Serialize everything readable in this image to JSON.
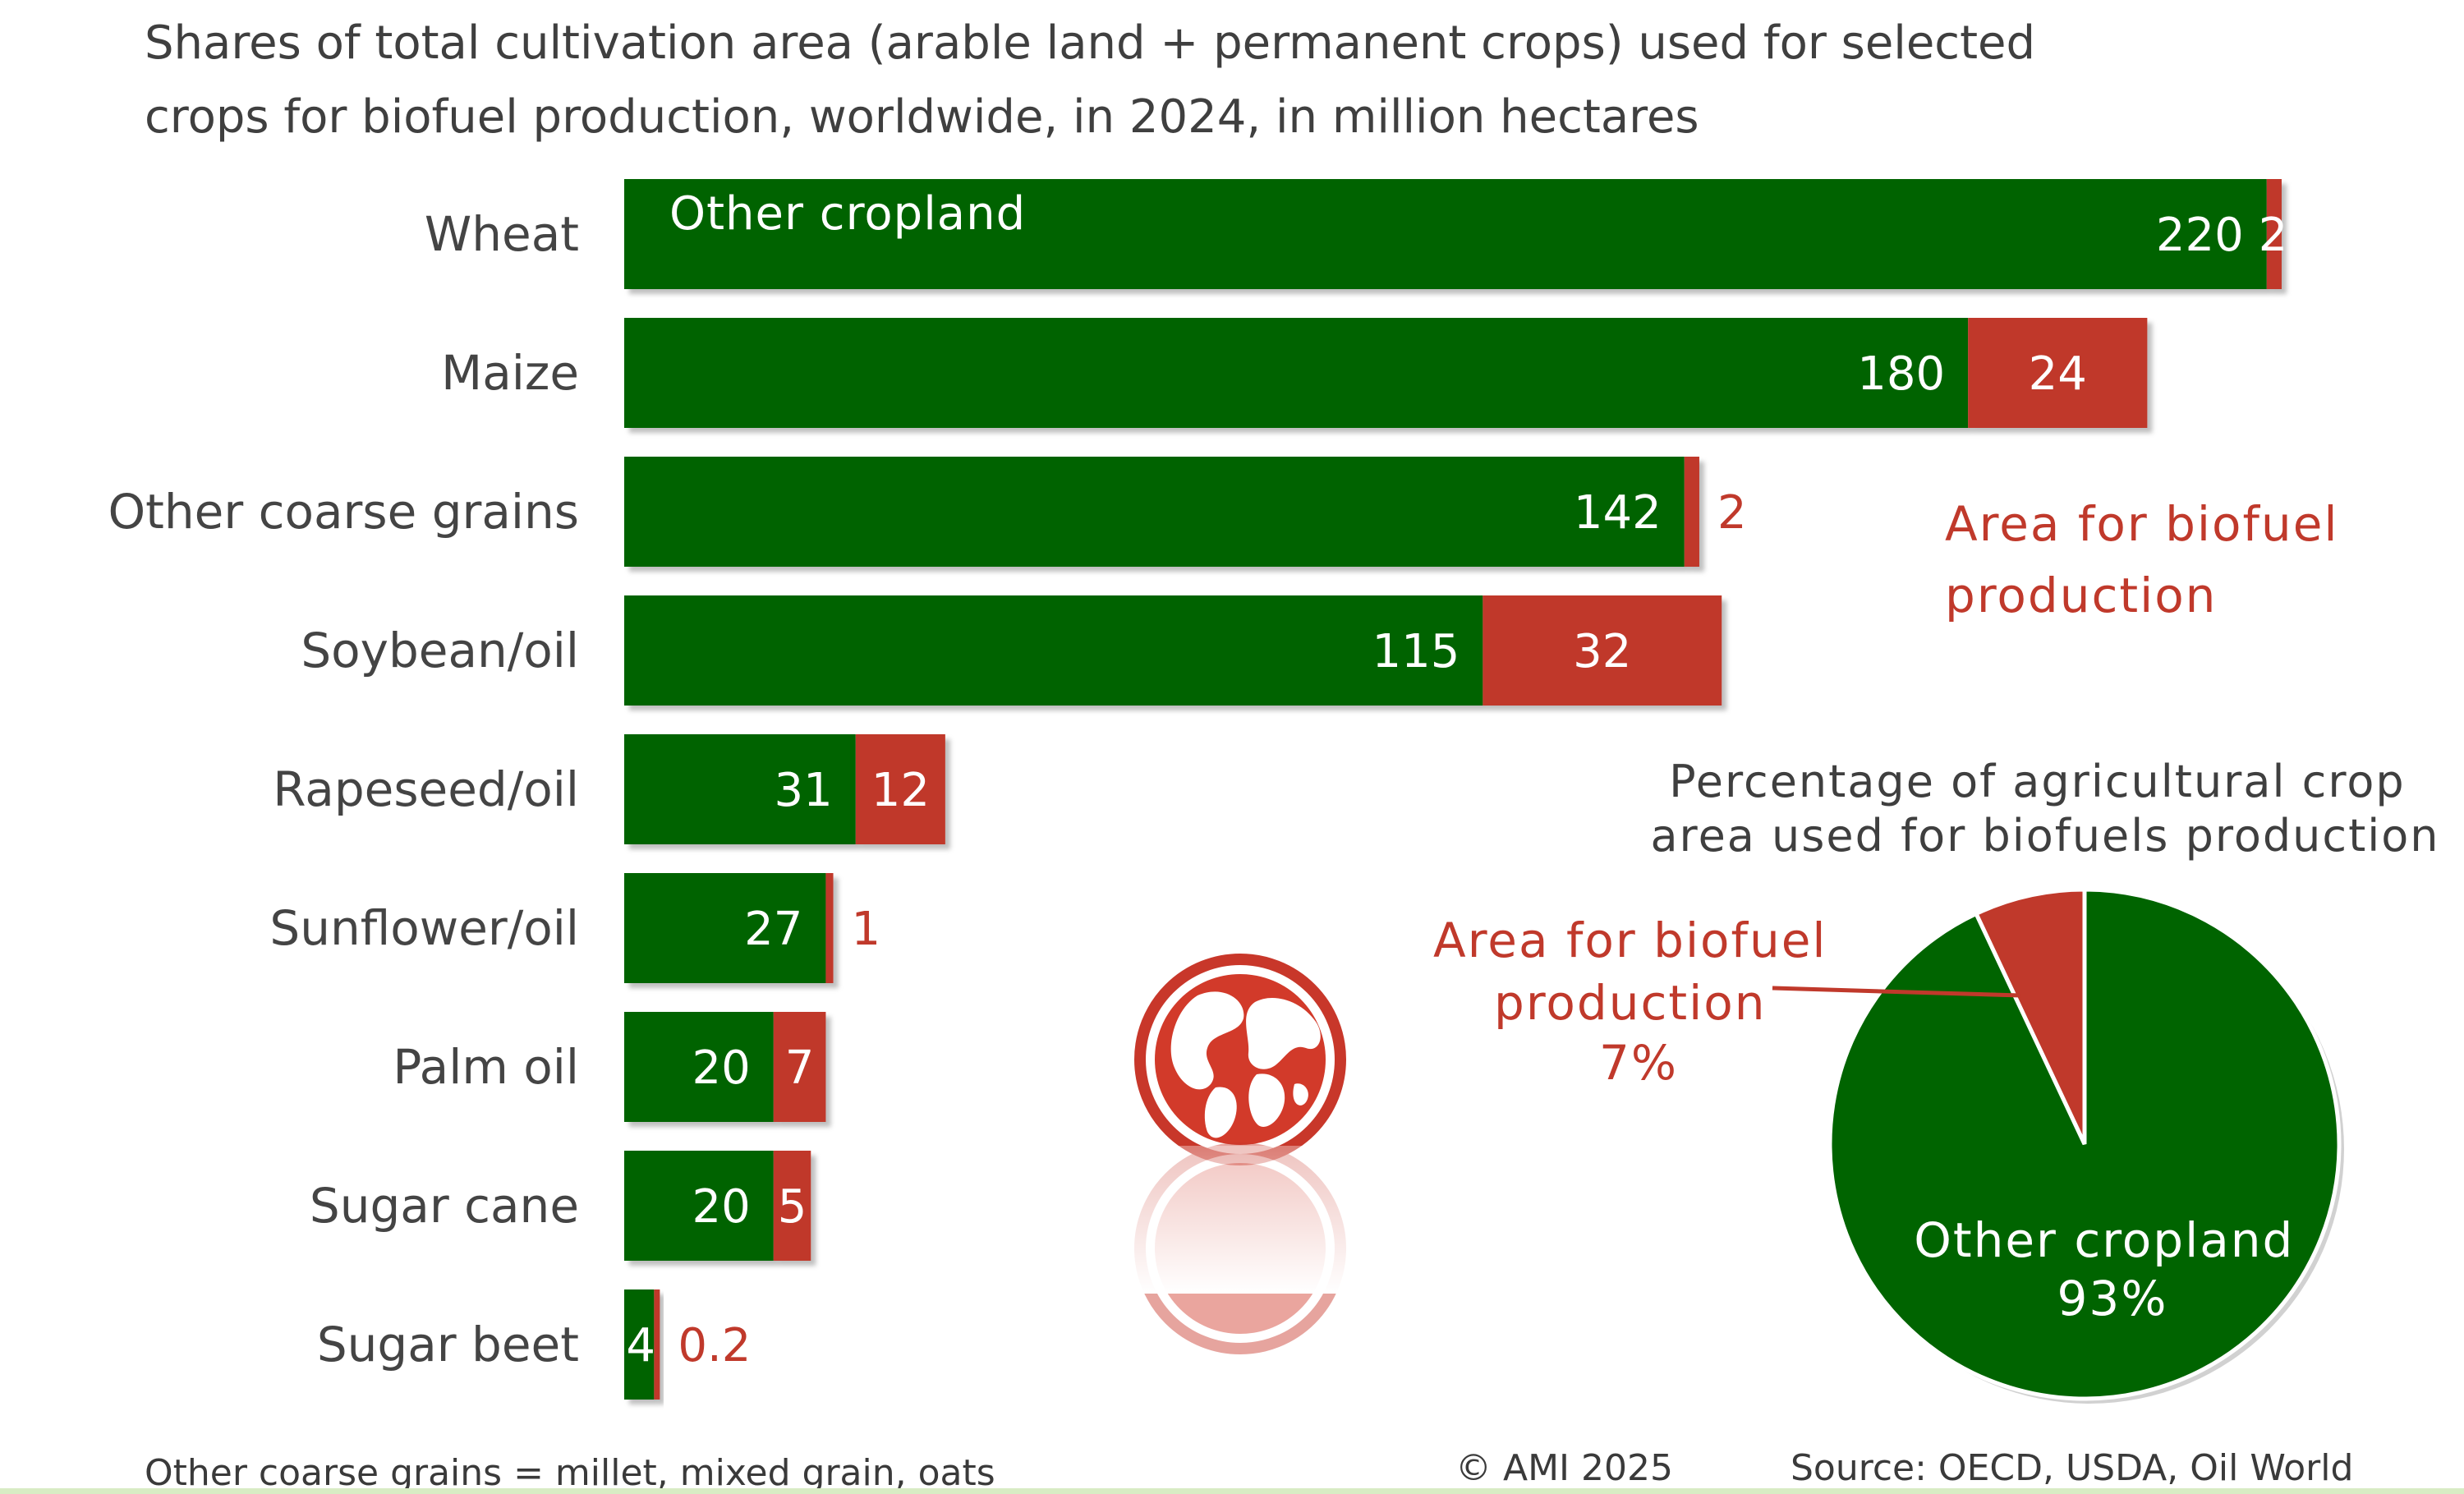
{
  "title": "Shares of total cultivation area (arable land + permanent crops) used for selected crops for biofuel production, worldwide, in 2024, in million hectares",
  "colors": {
    "other": "#006400",
    "biofuel": "#c0392b",
    "text": "#3f3f3f"
  },
  "chart_data": [
    {
      "type": "bar",
      "orientation": "horizontal",
      "stacked": true,
      "categories": [
        "Wheat",
        "Maize",
        "Other coarse grains",
        "Soybean/oil",
        "Rapeseed/oil",
        "Sunflower/oil",
        "Palm oil",
        "Sugar cane",
        "Sugar beet"
      ],
      "series": [
        {
          "name": "Other cropland",
          "values": [
            220,
            180,
            142,
            115,
            31,
            27,
            20,
            20,
            4
          ],
          "labels": [
            "220",
            "180",
            "142",
            "115",
            "31",
            "27",
            "20",
            "20",
            "4"
          ]
        },
        {
          "name": "Area for biofuel production",
          "values": [
            2,
            24,
            2,
            32,
            12,
            1,
            7,
            5,
            0.2
          ],
          "labels": [
            "2",
            "24",
            "2",
            "32",
            "12",
            "1",
            "7",
            "5",
            "0.2"
          ]
        }
      ],
      "xlim": [
        0,
        222
      ]
    },
    {
      "type": "pie",
      "title": "Percentage of agricultural crop area used for biofuels production",
      "slices": [
        {
          "name": "Area for biofuel production",
          "value": 7,
          "label": "7%"
        },
        {
          "name": "Other cropland",
          "value": 93,
          "label": "93%"
        }
      ]
    }
  ],
  "footer": {
    "note": "Other coarse grains = millet, mixed grain, oats",
    "copyright": "© AMI 2025",
    "source": "Source: OECD, USDA, Oil World"
  }
}
